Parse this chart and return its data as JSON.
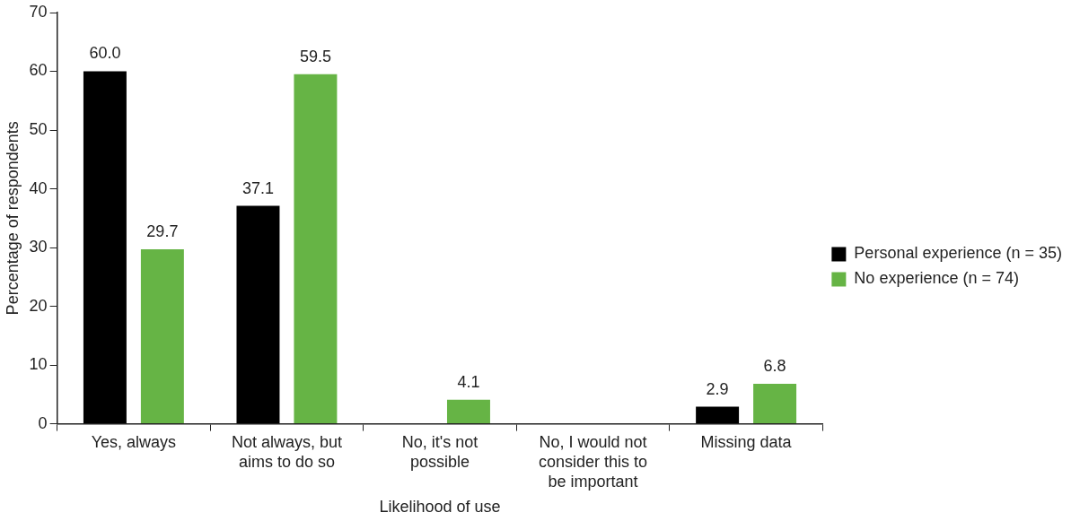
{
  "chart_data": {
    "type": "bar",
    "xlabel": "Likelihood of use",
    "ylabel": "Percentage of respondents",
    "categories": [
      "Yes, always",
      "Not always, but aims to do so",
      "No, it's not possible",
      "No, I would not consider this to be important",
      "Missing data"
    ],
    "series": [
      {
        "name": "Personal experience (n = 35)",
        "color": "#000000",
        "values": [
          60.0,
          37.1,
          0,
          0,
          2.9
        ],
        "value_labels": [
          "60.0",
          "37.1",
          null,
          null,
          "2.9"
        ]
      },
      {
        "name": "No experience (n = 74)",
        "color": "#66b445",
        "values": [
          29.7,
          59.5,
          4.1,
          0,
          6.8
        ],
        "value_labels": [
          "29.7",
          "59.5",
          "4.1",
          null,
          "6.8"
        ]
      }
    ],
    "ylim": [
      0,
      70
    ],
    "yticks": [
      0,
      10,
      20,
      30,
      40,
      50,
      60,
      70
    ],
    "grid": false,
    "legend": "right"
  }
}
